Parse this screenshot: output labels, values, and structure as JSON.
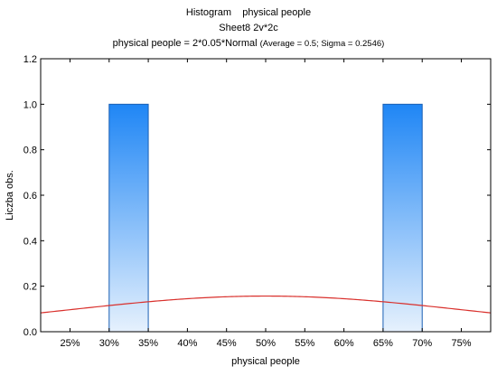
{
  "chart_data": {
    "type": "bar",
    "title": "Histogram    physical people",
    "subtitle": "Sheet8 2v*2c",
    "formula_main": "physical people = 2*0.05*Normal ",
    "formula_params": "(Average = 0.5; Sigma = 0.2546)",
    "xlabel": "physical people",
    "ylabel": "Liczba obs.",
    "xlim": [
      0.2125,
      0.7875
    ],
    "ylim": [
      0,
      1.2
    ],
    "x_ticks": [
      0.25,
      0.3,
      0.35,
      0.4,
      0.45,
      0.5,
      0.55,
      0.6,
      0.65,
      0.7,
      0.75
    ],
    "x_tick_labels": [
      "25%",
      "30%",
      "35%",
      "40%",
      "45%",
      "50%",
      "55%",
      "60%",
      "65%",
      "70%",
      "75%"
    ],
    "y_ticks": [
      0.0,
      0.2,
      0.4,
      0.6,
      0.8,
      1.0,
      1.2
    ],
    "y_tick_labels": [
      "0.0",
      "0.2",
      "0.4",
      "0.6",
      "0.8",
      "1.0",
      "1.2"
    ],
    "bins": [
      {
        "from": 0.3,
        "to": 0.35,
        "count": 1
      },
      {
        "from": 0.65,
        "to": 0.7,
        "count": 1
      }
    ],
    "normal_curve": {
      "mean": 0.5,
      "sigma": 0.2546,
      "n": 2,
      "bin_width": 0.05
    },
    "colors": {
      "bar_top": "#1f86f5",
      "bar_bottom": "#e6f1fd",
      "bar_edge": "#1a5fb4",
      "curve": "#d9302c",
      "grid": "#000000"
    },
    "grid": false,
    "legend": "none"
  }
}
